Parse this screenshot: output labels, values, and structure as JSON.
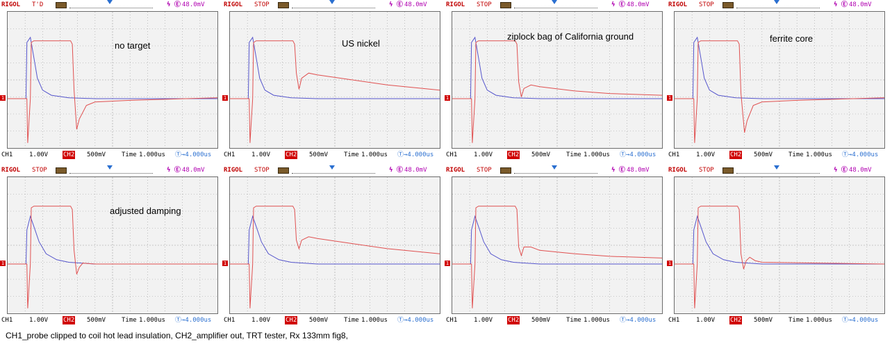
{
  "caption": "CH1_probe clipped to coil hot lead insulation, CH2_amplifier out, TRT tester, Rx 133mm fig8,",
  "colors": {
    "ch1": "#5555cc",
    "ch2": "#e05050",
    "grid": "#9a9a9a"
  },
  "chart_data": [
    {
      "type": "line",
      "title": "",
      "annotation": "no target",
      "status": "T'D",
      "brand": "RIGOL",
      "trig_level": "48.0mV",
      "ch1_label": "CH1",
      "ch1_scale": "1.00V",
      "ch2_label": "CH2",
      "ch2_scale": "500mV",
      "time_label": "Time",
      "timebase": "1.000us",
      "trig_time": "4.000us",
      "xlim": [
        -1,
        11
      ],
      "ylim": [
        -4,
        4
      ],
      "series": [
        {
          "name": "CH1",
          "points": [
            [
              -1,
              0
            ],
            [
              0.05,
              0
            ],
            [
              0.1,
              3.3
            ],
            [
              0.3,
              3.6
            ],
            [
              0.5,
              2.4
            ],
            [
              0.7,
              1.2
            ],
            [
              1.0,
              0.5
            ],
            [
              1.5,
              0.2
            ],
            [
              2.5,
              0.05
            ],
            [
              4,
              0.0
            ],
            [
              11,
              0.0
            ]
          ]
        },
        {
          "name": "CH2",
          "points": [
            [
              -1,
              0
            ],
            [
              0.1,
              0
            ],
            [
              0.15,
              -2.6
            ],
            [
              0.3,
              0
            ],
            [
              0.35,
              3.3
            ],
            [
              0.5,
              3.4
            ],
            [
              2.6,
              3.4
            ],
            [
              2.7,
              3.2
            ],
            [
              2.8,
              0.5
            ],
            [
              2.95,
              -1.8
            ],
            [
              3.1,
              -1.2
            ],
            [
              3.5,
              -0.4
            ],
            [
              4,
              -0.2
            ],
            [
              6,
              -0.1
            ],
            [
              11,
              0.05
            ]
          ]
        }
      ]
    },
    {
      "type": "line",
      "title": "",
      "annotation": "US nickel",
      "status": "STOP",
      "brand": "RIGOL",
      "trig_level": "48.0mV",
      "ch1_label": "CH1",
      "ch1_scale": "1.00V",
      "ch2_label": "CH2",
      "ch2_scale": "500mV",
      "time_label": "Time",
      "timebase": "1.000us",
      "trig_time": "4.000us",
      "xlim": [
        -1,
        11
      ],
      "ylim": [
        -4,
        4
      ],
      "series": [
        {
          "name": "CH1",
          "points": [
            [
              -1,
              0
            ],
            [
              0.05,
              0
            ],
            [
              0.1,
              3.3
            ],
            [
              0.3,
              3.6
            ],
            [
              0.5,
              2.4
            ],
            [
              0.7,
              1.2
            ],
            [
              1.0,
              0.5
            ],
            [
              1.5,
              0.2
            ],
            [
              2.5,
              0.05
            ],
            [
              4,
              0.0
            ],
            [
              11,
              0.0
            ]
          ]
        },
        {
          "name": "CH2",
          "points": [
            [
              -1,
              0
            ],
            [
              0.1,
              0
            ],
            [
              0.15,
              -2.6
            ],
            [
              0.3,
              0
            ],
            [
              0.35,
              3.3
            ],
            [
              0.5,
              3.4
            ],
            [
              2.6,
              3.4
            ],
            [
              2.7,
              3.2
            ],
            [
              2.8,
              1.5
            ],
            [
              2.95,
              0.55
            ],
            [
              3.1,
              1.2
            ],
            [
              3.5,
              1.5
            ],
            [
              4,
              1.4
            ],
            [
              6,
              1.1
            ],
            [
              8,
              0.8
            ],
            [
              11,
              0.5
            ]
          ]
        }
      ]
    },
    {
      "type": "line",
      "title": "",
      "annotation": "ziplock bag of California ground",
      "status": "STOP",
      "brand": "RIGOL",
      "trig_level": "48.0mV",
      "ch1_label": "CH1",
      "ch1_scale": "1.00V",
      "ch2_label": "CH2",
      "ch2_scale": "500mV",
      "time_label": "Time",
      "timebase": "1.000us",
      "trig_time": "4.000us",
      "xlim": [
        -1,
        11
      ],
      "ylim": [
        -4,
        4
      ],
      "series": [
        {
          "name": "CH1",
          "points": [
            [
              -1,
              0
            ],
            [
              0.05,
              0
            ],
            [
              0.1,
              3.3
            ],
            [
              0.3,
              3.6
            ],
            [
              0.5,
              2.4
            ],
            [
              0.7,
              1.2
            ],
            [
              1.0,
              0.5
            ],
            [
              1.5,
              0.2
            ],
            [
              2.5,
              0.05
            ],
            [
              4,
              0.0
            ],
            [
              11,
              0.0
            ]
          ]
        },
        {
          "name": "CH2",
          "points": [
            [
              -1,
              0
            ],
            [
              0.1,
              0
            ],
            [
              0.15,
              -2.6
            ],
            [
              0.3,
              0
            ],
            [
              0.35,
              3.3
            ],
            [
              0.5,
              3.4
            ],
            [
              2.6,
              3.4
            ],
            [
              2.7,
              3.2
            ],
            [
              2.8,
              1.0
            ],
            [
              2.95,
              0.1
            ],
            [
              3.1,
              0.6
            ],
            [
              3.5,
              0.8
            ],
            [
              4,
              0.7
            ],
            [
              6,
              0.45
            ],
            [
              8,
              0.3
            ],
            [
              11,
              0.2
            ]
          ]
        }
      ]
    },
    {
      "type": "line",
      "title": "",
      "annotation": "ferrite core",
      "status": "STOP",
      "brand": "RIGOL",
      "trig_level": "48.0mV",
      "ch1_label": "CH1",
      "ch1_scale": "1.00V",
      "ch2_label": "CH2",
      "ch2_scale": "500mV",
      "time_label": "Time",
      "timebase": "1.000us",
      "trig_time": "4.000us",
      "xlim": [
        -1,
        11
      ],
      "ylim": [
        -4,
        4
      ],
      "series": [
        {
          "name": "CH1",
          "points": [
            [
              -1,
              0
            ],
            [
              0.05,
              0
            ],
            [
              0.1,
              3.3
            ],
            [
              0.3,
              3.6
            ],
            [
              0.5,
              2.4
            ],
            [
              0.7,
              1.2
            ],
            [
              1.0,
              0.5
            ],
            [
              1.5,
              0.2
            ],
            [
              2.5,
              0.05
            ],
            [
              4,
              0.0
            ],
            [
              11,
              0.0
            ]
          ]
        },
        {
          "name": "CH2",
          "points": [
            [
              -1,
              0
            ],
            [
              0.1,
              0
            ],
            [
              0.15,
              -2.6
            ],
            [
              0.3,
              0
            ],
            [
              0.35,
              3.3
            ],
            [
              0.5,
              3.4
            ],
            [
              2.6,
              3.4
            ],
            [
              2.7,
              3.2
            ],
            [
              2.8,
              0.3
            ],
            [
              3.0,
              -2.0
            ],
            [
              3.15,
              -1.3
            ],
            [
              3.5,
              -0.4
            ],
            [
              4,
              -0.2
            ],
            [
              6,
              -0.1
            ],
            [
              11,
              0.05
            ]
          ]
        }
      ]
    },
    {
      "type": "line",
      "title": "",
      "annotation": "adjusted damping",
      "status": "STOP",
      "brand": "RIGOL",
      "trig_level": "48.0mV",
      "ch1_label": "CH1",
      "ch1_scale": "1.00V",
      "ch2_label": "CH2",
      "ch2_scale": "500mV",
      "time_label": "Time",
      "timebase": "1.000us",
      "trig_time": "4.000us",
      "xlim": [
        -1,
        11
      ],
      "ylim": [
        -4,
        4
      ],
      "series": [
        {
          "name": "CH1",
          "points": [
            [
              -1,
              0
            ],
            [
              0.05,
              0
            ],
            [
              0.1,
              2.0
            ],
            [
              0.3,
              2.8
            ],
            [
              0.5,
              2.2
            ],
            [
              0.8,
              1.3
            ],
            [
              1.2,
              0.6
            ],
            [
              1.8,
              0.25
            ],
            [
              2.5,
              0.1
            ],
            [
              4,
              0.0
            ],
            [
              11,
              0.0
            ]
          ]
        },
        {
          "name": "CH2",
          "points": [
            [
              -1,
              0
            ],
            [
              0.1,
              0
            ],
            [
              0.15,
              -2.6
            ],
            [
              0.3,
              0
            ],
            [
              0.35,
              3.3
            ],
            [
              0.5,
              3.4
            ],
            [
              2.6,
              3.4
            ],
            [
              2.7,
              3.2
            ],
            [
              2.8,
              0.8
            ],
            [
              2.95,
              -0.6
            ],
            [
              3.1,
              -0.2
            ],
            [
              3.3,
              0.05
            ],
            [
              4,
              0.0
            ],
            [
              11,
              0.0
            ]
          ]
        }
      ]
    },
    {
      "type": "line",
      "title": "",
      "annotation": "",
      "status": "STOP",
      "brand": "RIGOL",
      "trig_level": "48.0mV",
      "ch1_label": "CH1",
      "ch1_scale": "1.00V",
      "ch2_label": "CH2",
      "ch2_scale": "500mV",
      "time_label": "Time",
      "timebase": "1.000us",
      "trig_time": "4.000us",
      "xlim": [
        -1,
        11
      ],
      "ylim": [
        -4,
        4
      ],
      "series": [
        {
          "name": "CH1",
          "points": [
            [
              -1,
              0
            ],
            [
              0.05,
              0
            ],
            [
              0.1,
              2.0
            ],
            [
              0.3,
              2.8
            ],
            [
              0.5,
              2.2
            ],
            [
              0.8,
              1.3
            ],
            [
              1.2,
              0.6
            ],
            [
              1.8,
              0.25
            ],
            [
              2.5,
              0.1
            ],
            [
              4,
              0.0
            ],
            [
              11,
              0.0
            ]
          ]
        },
        {
          "name": "CH2",
          "points": [
            [
              -1,
              0
            ],
            [
              0.1,
              0
            ],
            [
              0.15,
              -2.6
            ],
            [
              0.3,
              0
            ],
            [
              0.35,
              3.3
            ],
            [
              0.5,
              3.4
            ],
            [
              2.6,
              3.4
            ],
            [
              2.7,
              3.2
            ],
            [
              2.8,
              1.4
            ],
            [
              2.95,
              0.9
            ],
            [
              3.1,
              1.4
            ],
            [
              3.5,
              1.6
            ],
            [
              4,
              1.5
            ],
            [
              6,
              1.2
            ],
            [
              8,
              0.9
            ],
            [
              11,
              0.6
            ]
          ]
        }
      ]
    },
    {
      "type": "line",
      "title": "",
      "annotation": "",
      "status": "STOP",
      "brand": "RIGOL",
      "trig_level": "48.0mV",
      "ch1_label": "CH1",
      "ch1_scale": "1.00V",
      "ch2_label": "CH2",
      "ch2_scale": "500mV",
      "time_label": "Time",
      "timebase": "1.000us",
      "trig_time": "4.000us",
      "xlim": [
        -1,
        11
      ],
      "ylim": [
        -4,
        4
      ],
      "series": [
        {
          "name": "CH1",
          "points": [
            [
              -1,
              0
            ],
            [
              0.05,
              0
            ],
            [
              0.1,
              2.0
            ],
            [
              0.3,
              2.8
            ],
            [
              0.5,
              2.2
            ],
            [
              0.8,
              1.3
            ],
            [
              1.2,
              0.6
            ],
            [
              1.8,
              0.25
            ],
            [
              2.5,
              0.1
            ],
            [
              4,
              0.0
            ],
            [
              11,
              0.0
            ]
          ]
        },
        {
          "name": "CH2",
          "points": [
            [
              -1,
              0
            ],
            [
              0.1,
              0
            ],
            [
              0.15,
              -2.6
            ],
            [
              0.3,
              0
            ],
            [
              0.35,
              3.3
            ],
            [
              0.5,
              3.4
            ],
            [
              2.6,
              3.4
            ],
            [
              2.7,
              3.2
            ],
            [
              2.8,
              1.0
            ],
            [
              2.95,
              0.5
            ],
            [
              3.1,
              1.0
            ],
            [
              3.5,
              1.0
            ],
            [
              4,
              0.8
            ],
            [
              6,
              0.6
            ],
            [
              8,
              0.45
            ],
            [
              11,
              0.35
            ]
          ]
        }
      ]
    },
    {
      "type": "line",
      "title": "",
      "annotation": "",
      "status": "STOP",
      "brand": "RIGOL",
      "trig_level": "48.0mV",
      "ch1_label": "CH1",
      "ch1_scale": "1.00V",
      "ch2_label": "CH2",
      "ch2_scale": "500mV",
      "time_label": "Time",
      "timebase": "1.000us",
      "trig_time": "4.000us",
      "xlim": [
        -1,
        11
      ],
      "ylim": [
        -4,
        4
      ],
      "series": [
        {
          "name": "CH1",
          "points": [
            [
              -1,
              0
            ],
            [
              0.05,
              0
            ],
            [
              0.1,
              2.0
            ],
            [
              0.3,
              2.8
            ],
            [
              0.5,
              2.2
            ],
            [
              0.8,
              1.3
            ],
            [
              1.2,
              0.6
            ],
            [
              1.8,
              0.25
            ],
            [
              2.5,
              0.1
            ],
            [
              4,
              0.0
            ],
            [
              11,
              0.0
            ]
          ]
        },
        {
          "name": "CH2",
          "points": [
            [
              -1,
              0
            ],
            [
              0.1,
              0
            ],
            [
              0.15,
              -2.6
            ],
            [
              0.3,
              0
            ],
            [
              0.35,
              3.3
            ],
            [
              0.5,
              3.4
            ],
            [
              2.6,
              3.4
            ],
            [
              2.7,
              3.2
            ],
            [
              2.8,
              0.6
            ],
            [
              2.95,
              -0.3
            ],
            [
              3.1,
              0.2
            ],
            [
              3.3,
              0.4
            ],
            [
              3.6,
              0.2
            ],
            [
              4,
              0.1
            ],
            [
              11,
              0.0
            ]
          ]
        }
      ]
    }
  ]
}
